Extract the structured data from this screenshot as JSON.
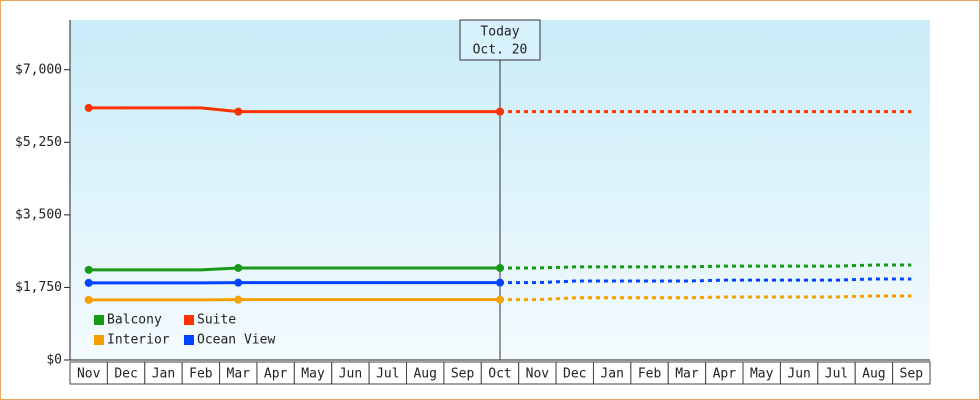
{
  "chart_data": {
    "type": "line",
    "annotation": {
      "title": "Today",
      "date": "Oct. 20"
    },
    "categories": [
      "Nov",
      "Dec",
      "Jan",
      "Feb",
      "Mar",
      "Apr",
      "May",
      "Jun",
      "Jul",
      "Aug",
      "Sep",
      "Oct",
      "Nov",
      "Dec",
      "Jan",
      "Feb",
      "Mar",
      "Apr",
      "May",
      "Jun",
      "Jul",
      "Aug",
      "Sep"
    ],
    "series": [
      {
        "name": "Balcony",
        "color": "#169a16",
        "values": [
          2175,
          2175,
          2175,
          2175,
          2220,
          2220,
          2220,
          2220,
          2220,
          2220,
          2220,
          2220,
          2220,
          2245,
          2245,
          2245,
          2245,
          2265,
          2265,
          2265,
          2265,
          2290,
          2290
        ]
      },
      {
        "name": "Suite",
        "color": "#ff3300",
        "values": [
          6080,
          6080,
          6080,
          6080,
          5990,
          5990,
          5990,
          5990,
          5990,
          5990,
          5990,
          5990,
          5990,
          5990,
          5990,
          5990,
          5990,
          5990,
          5990,
          5990,
          5990,
          5990,
          5990
        ]
      },
      {
        "name": "Interior",
        "color": "#f5a000",
        "values": [
          1450,
          1450,
          1450,
          1450,
          1455,
          1455,
          1455,
          1455,
          1455,
          1455,
          1455,
          1455,
          1455,
          1500,
          1500,
          1500,
          1500,
          1520,
          1520,
          1520,
          1520,
          1545,
          1545
        ]
      },
      {
        "name": "Ocean View",
        "color": "#0044ff",
        "values": [
          1860,
          1860,
          1860,
          1860,
          1865,
          1865,
          1865,
          1865,
          1865,
          1865,
          1865,
          1865,
          1865,
          1905,
          1905,
          1905,
          1905,
          1925,
          1925,
          1925,
          1925,
          1955,
          1955
        ]
      }
    ],
    "ylim": [
      0,
      8200
    ],
    "yticks": [
      {
        "value": 0,
        "label": "$0"
      },
      {
        "value": 1750,
        "label": "$1,750"
      },
      {
        "value": 3500,
        "label": "$3,500"
      },
      {
        "value": 5250,
        "label": "$5,250"
      },
      {
        "value": 7000,
        "label": "$7,000"
      }
    ],
    "legend": "lower-left"
  }
}
